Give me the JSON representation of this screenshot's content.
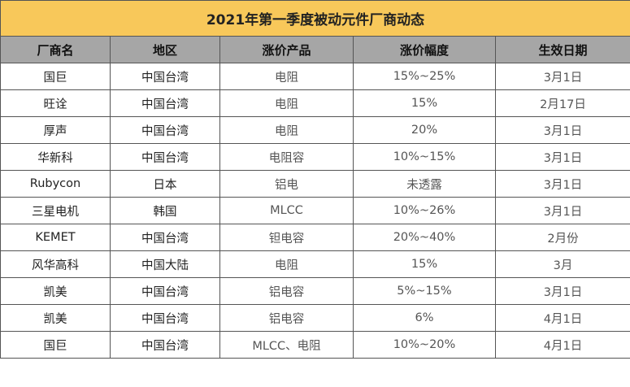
{
  "title": "2021年第一季度被动元件厂商动态",
  "headers": [
    "厂商名",
    "地区",
    "涨价产品",
    "涨价幅度",
    "生效日期"
  ],
  "rows": [
    [
      "国巨",
      "中国台湾",
      "电阻",
      "15%~25%",
      "3月1日"
    ],
    [
      "旺诠",
      "中国台湾",
      "电阻",
      "15%",
      "2月17日"
    ],
    [
      "厚声",
      "中国台湾",
      "电阻",
      "20%",
      "3月1日"
    ],
    [
      "华新科",
      "中国台湾",
      "电阻容",
      "10%~15%",
      "3月1日"
    ],
    [
      "Rubycon",
      "日本",
      "铝电",
      "未透露",
      "3月1日"
    ],
    [
      "三星电机",
      "韩国",
      "MLCC",
      "10%~26%",
      "3月1日"
    ],
    [
      "KEMET",
      "中国台湾",
      "钽电容",
      "20%~40%",
      "2月份"
    ],
    [
      "风华高科",
      "中国大陆",
      "电阻",
      "15%",
      "3月"
    ],
    [
      "凯美",
      "中国台湾",
      "铝电容",
      "5%~15%",
      "3月1日"
    ],
    [
      "凯美",
      "中国台湾",
      "铝电容",
      "6%",
      "4月1日"
    ],
    [
      "国巨",
      "中国台湾",
      "MLCC、电阻",
      "10%~20%",
      "4月1日"
    ]
  ]
}
